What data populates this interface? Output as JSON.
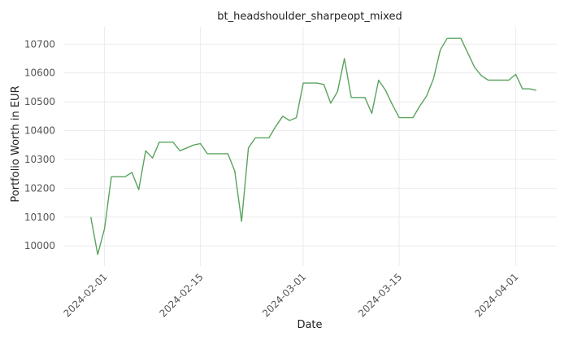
{
  "chart_data": {
    "type": "line",
    "title": "bt_headshoulder_sharpeopt_mixed",
    "xlabel": "Date",
    "ylabel": "Portfolio Worth in EUR",
    "xlim": [
      "2024-01-26",
      "2024-04-07"
    ],
    "ylim": [
      9930,
      10760
    ],
    "grid": true,
    "x_ticks": [
      "2024-02-01",
      "2024-02-15",
      "2024-03-01",
      "2024-03-15",
      "2024-04-01"
    ],
    "y_ticks": [
      10000,
      10100,
      10200,
      10300,
      10400,
      10500,
      10600,
      10700
    ],
    "series": [
      {
        "color": "#5aa35e",
        "points": [
          [
            "2024-01-30",
            10100
          ],
          [
            "2024-01-31",
            9970
          ],
          [
            "2024-02-01",
            10060
          ],
          [
            "2024-02-02",
            10240
          ],
          [
            "2024-02-03",
            10240
          ],
          [
            "2024-02-04",
            10240
          ],
          [
            "2024-02-05",
            10255
          ],
          [
            "2024-02-06",
            10195
          ],
          [
            "2024-02-07",
            10330
          ],
          [
            "2024-02-08",
            10305
          ],
          [
            "2024-02-09",
            10360
          ],
          [
            "2024-02-10",
            10360
          ],
          [
            "2024-02-11",
            10360
          ],
          [
            "2024-02-12",
            10330
          ],
          [
            "2024-02-13",
            10340
          ],
          [
            "2024-02-14",
            10350
          ],
          [
            "2024-02-15",
            10355
          ],
          [
            "2024-02-16",
            10320
          ],
          [
            "2024-02-17",
            10320
          ],
          [
            "2024-02-18",
            10320
          ],
          [
            "2024-02-19",
            10320
          ],
          [
            "2024-02-20",
            10260
          ],
          [
            "2024-02-21",
            10085
          ],
          [
            "2024-02-22",
            10340
          ],
          [
            "2024-02-23",
            10375
          ],
          [
            "2024-02-24",
            10375
          ],
          [
            "2024-02-25",
            10375
          ],
          [
            "2024-02-26",
            10415
          ],
          [
            "2024-02-27",
            10450
          ],
          [
            "2024-02-28",
            10435
          ],
          [
            "2024-02-29",
            10445
          ],
          [
            "2024-03-01",
            10565
          ],
          [
            "2024-03-02",
            10565
          ],
          [
            "2024-03-03",
            10565
          ],
          [
            "2024-03-04",
            10560
          ],
          [
            "2024-03-05",
            10495
          ],
          [
            "2024-03-06",
            10535
          ],
          [
            "2024-03-07",
            10650
          ],
          [
            "2024-03-08",
            10515
          ],
          [
            "2024-03-09",
            10515
          ],
          [
            "2024-03-10",
            10515
          ],
          [
            "2024-03-11",
            10460
          ],
          [
            "2024-03-12",
            10575
          ],
          [
            "2024-03-13",
            10540
          ],
          [
            "2024-03-14",
            10490
          ],
          [
            "2024-03-15",
            10445
          ],
          [
            "2024-03-16",
            10445
          ],
          [
            "2024-03-17",
            10445
          ],
          [
            "2024-03-18",
            10485
          ],
          [
            "2024-03-19",
            10520
          ],
          [
            "2024-03-20",
            10580
          ],
          [
            "2024-03-21",
            10680
          ],
          [
            "2024-03-22",
            10720
          ],
          [
            "2024-03-23",
            10720
          ],
          [
            "2024-03-24",
            10720
          ],
          [
            "2024-03-25",
            10670
          ],
          [
            "2024-03-26",
            10620
          ],
          [
            "2024-03-27",
            10590
          ],
          [
            "2024-03-28",
            10575
          ],
          [
            "2024-03-29",
            10575
          ],
          [
            "2024-03-30",
            10575
          ],
          [
            "2024-03-31",
            10575
          ],
          [
            "2024-04-01",
            10595
          ],
          [
            "2024-04-02",
            10545
          ],
          [
            "2024-04-03",
            10545
          ],
          [
            "2024-04-04",
            10540
          ]
        ]
      }
    ]
  }
}
